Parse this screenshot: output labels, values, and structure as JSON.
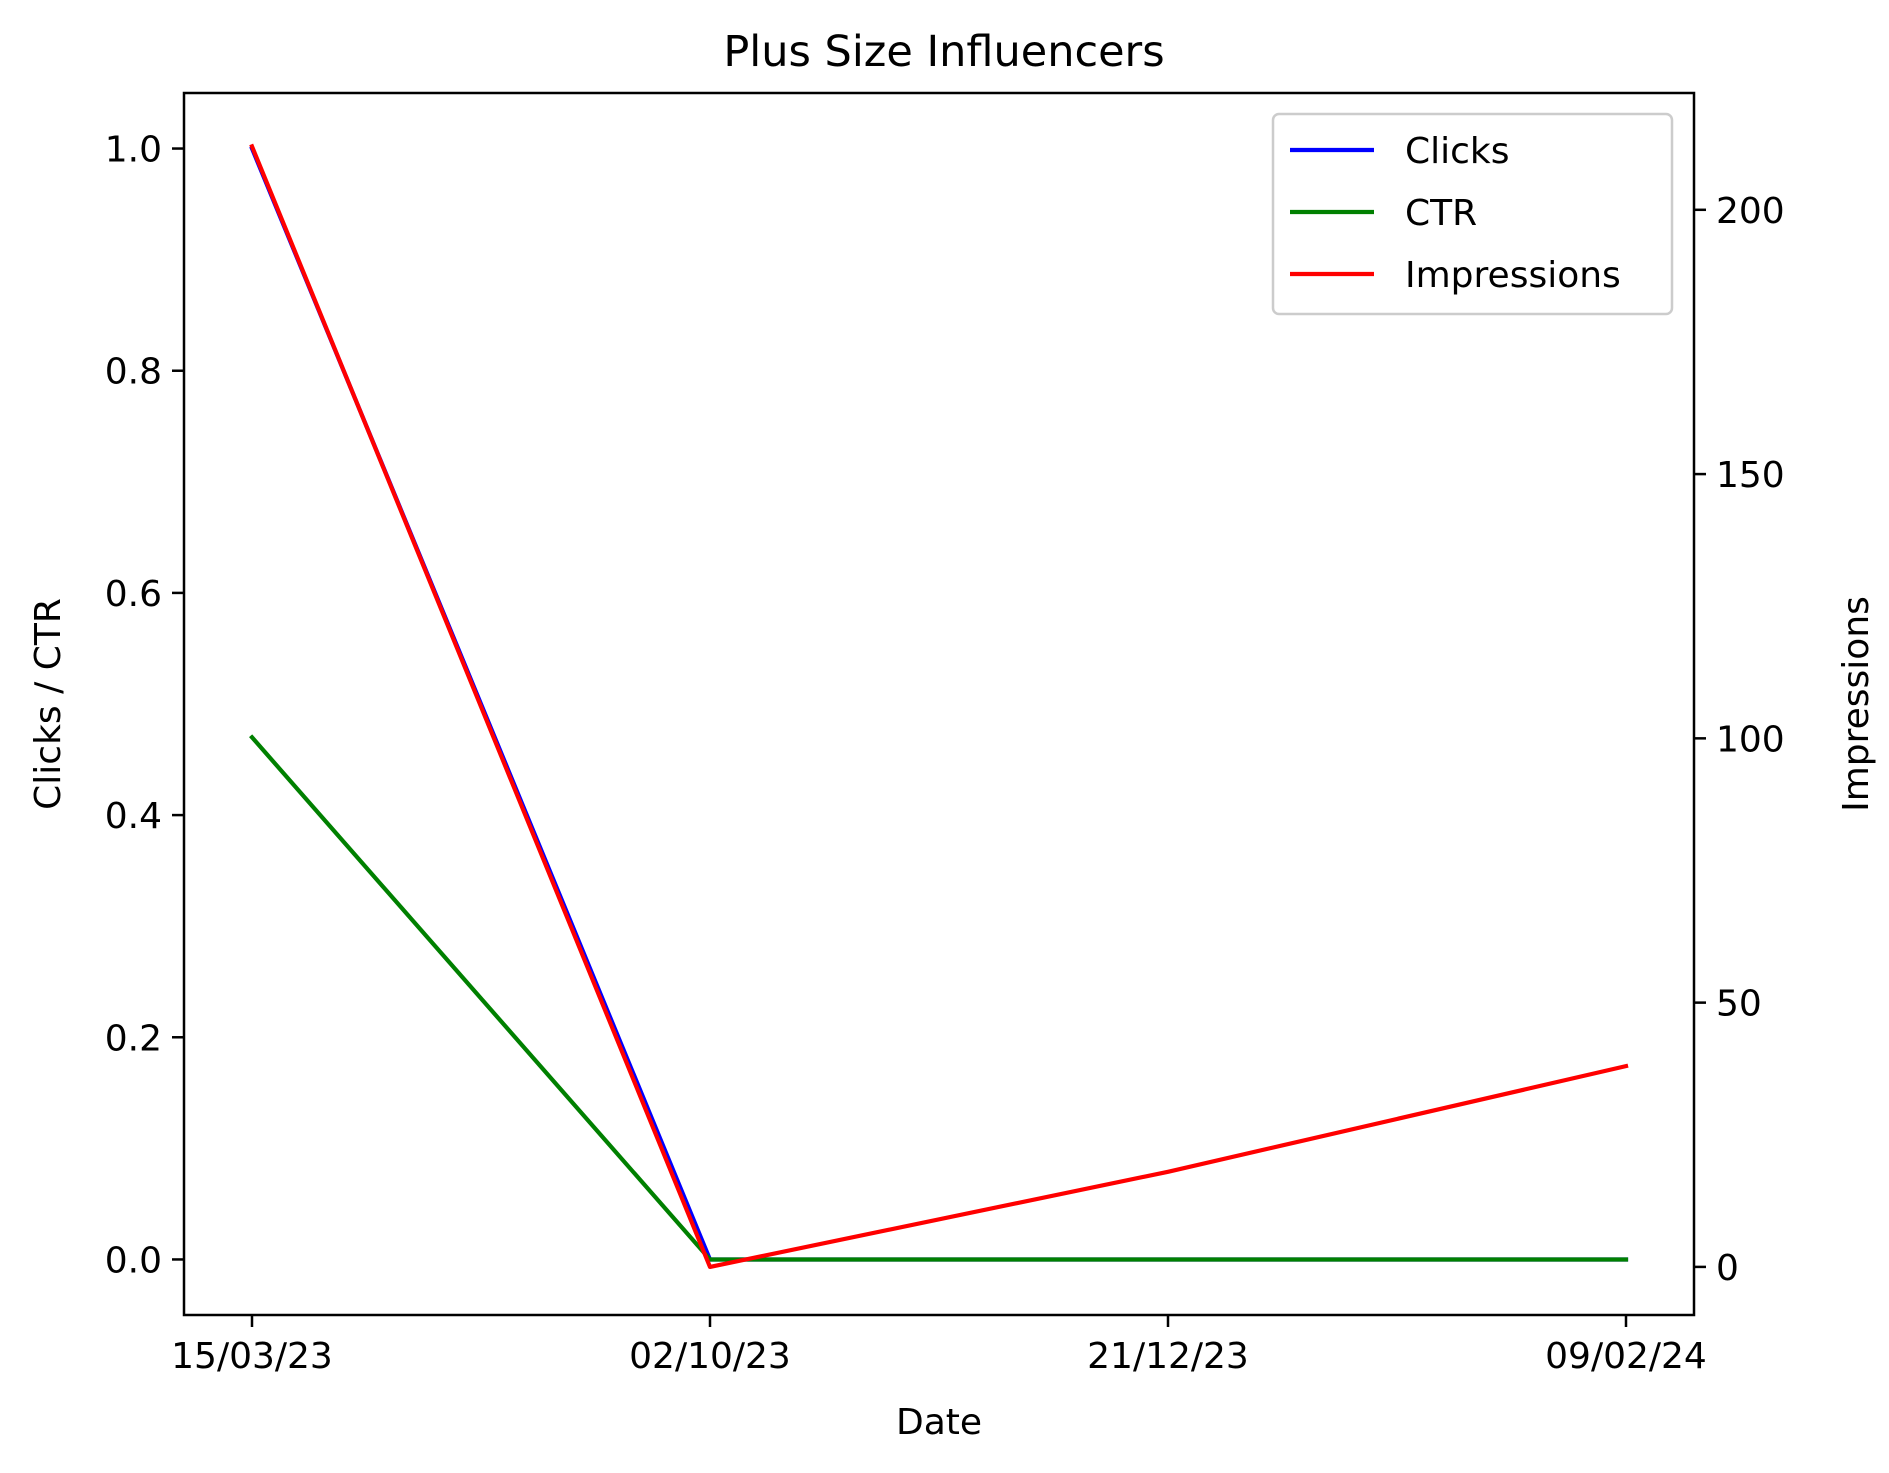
{
  "chart_data": {
    "type": "line",
    "title": "Plus Size Influencers",
    "xlabel": "Date",
    "ylabel_left": "Clicks / CTR",
    "ylabel_right": "Impressions",
    "categories": [
      "15/03/23",
      "02/10/23",
      "21/12/23",
      "09/02/24"
    ],
    "y_left": {
      "lim": [
        -0.05,
        1.05
      ],
      "ticks": [
        0.0,
        0.2,
        0.4,
        0.6,
        0.8,
        1.0
      ],
      "tick_labels": [
        "0.0",
        "0.2",
        "0.4",
        "0.6",
        "0.8",
        "1.0"
      ]
    },
    "y_right": {
      "lim": [
        -9.1,
        222.1
      ],
      "ticks": [
        0,
        50,
        100,
        150,
        200
      ],
      "tick_labels": [
        "0",
        "50",
        "100",
        "150",
        "200"
      ]
    },
    "series": [
      {
        "name": "Clicks",
        "axis": "left",
        "color": "#0000ff",
        "values": [
          1.0,
          0.0,
          0.0,
          0.0
        ]
      },
      {
        "name": "CTR",
        "axis": "left",
        "color": "#008000",
        "values": [
          0.47,
          0.0,
          0.0,
          0.0
        ]
      },
      {
        "name": "Impressions",
        "axis": "right",
        "color": "#ff0000",
        "values": [
          212,
          0,
          18,
          38
        ]
      }
    ],
    "legend": "top-right",
    "grid": false
  }
}
